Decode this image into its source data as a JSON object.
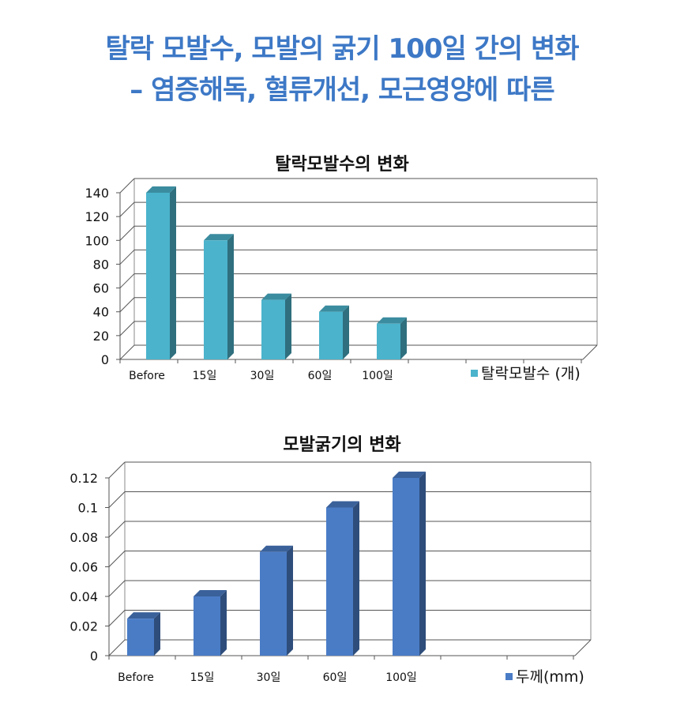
{
  "headline": {
    "line1": "탈락 모발수, 모발의 굵기 100일 간의 변화",
    "line2": "–  염증해독, 혈류개선, 모근영양에 따른"
  },
  "chart_data": [
    {
      "type": "bar",
      "title": "탈락모발수의 변화",
      "categories": [
        "Before",
        "15일",
        "30일",
        "60일",
        "100일"
      ],
      "series": [
        {
          "name": "탈락모발수 (개)",
          "values": [
            140,
            100,
            50,
            40,
            30
          ]
        }
      ],
      "ylim": [
        0,
        140
      ],
      "yticks": [
        0,
        20,
        40,
        60,
        80,
        100,
        120,
        140
      ],
      "ytick_labels": [
        "0",
        "20",
        "40",
        "60",
        "80",
        "100",
        "120",
        "140"
      ],
      "grid": true,
      "legend_position": "bottom-right",
      "color": "#4bb3cc"
    },
    {
      "type": "bar",
      "title": "모발굵기의 변화",
      "categories": [
        "Before",
        "15일",
        "30일",
        "60일",
        "100일"
      ],
      "series": [
        {
          "name": "두께(mm)",
          "values": [
            0.025,
            0.04,
            0.07,
            0.1,
            0.12
          ]
        }
      ],
      "ylim": [
        0,
        0.12
      ],
      "yticks": [
        0,
        0.02,
        0.04,
        0.06,
        0.08,
        0.1,
        0.12
      ],
      "ytick_labels": [
        "0",
        "0.02",
        "0.04",
        "0.06",
        "0.08",
        "0.1",
        "0.12"
      ],
      "grid": true,
      "legend_position": "bottom-right",
      "color": "#4a7cc6"
    }
  ]
}
